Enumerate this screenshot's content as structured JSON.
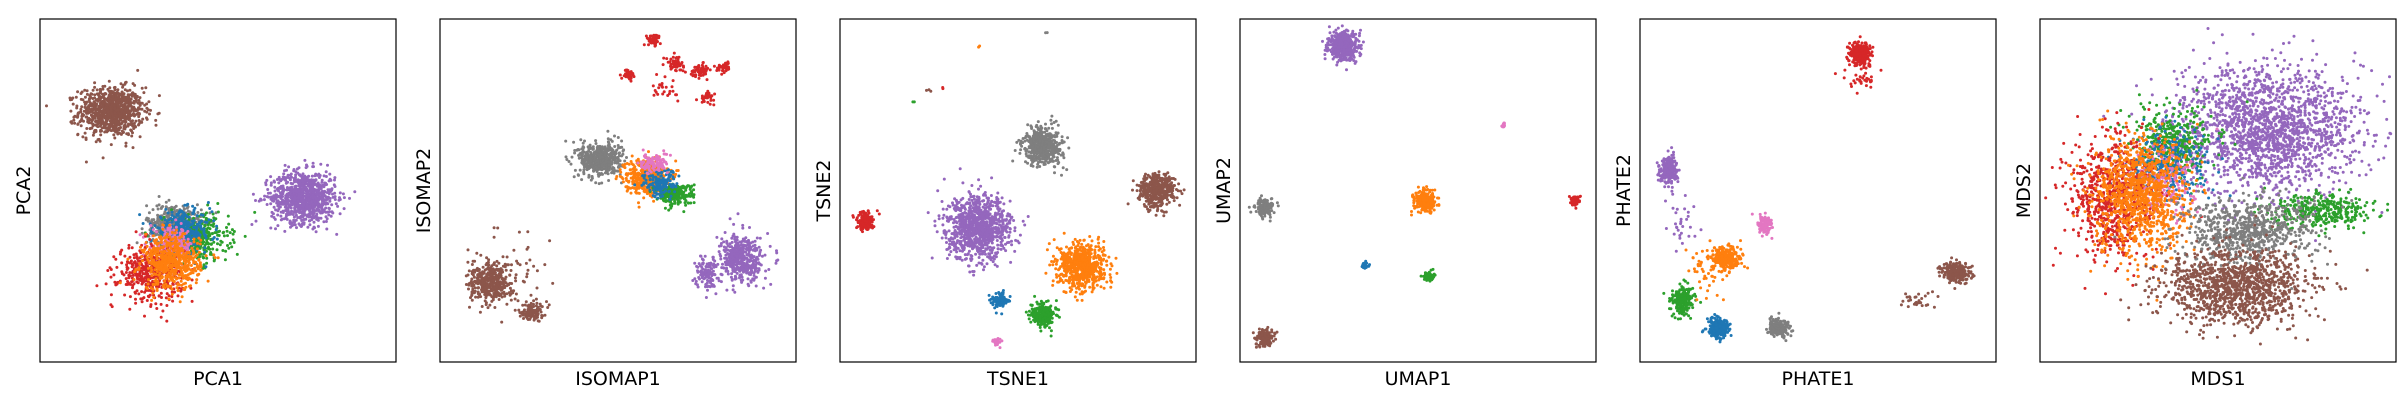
{
  "figure": {
    "colors": [
      "#1f77b4",
      "#ff7f0e",
      "#2ca02c",
      "#d62728",
      "#9467bd",
      "#8c564b",
      "#e377c2",
      "#7f7f7f"
    ]
  },
  "chart_data": [
    {
      "type": "scatter",
      "title": "",
      "xlabel": "PCA1",
      "ylabel": "PCA2",
      "xlim": [
        0,
        100
      ],
      "ylim": [
        0,
        100
      ],
      "grid": false,
      "legend": "none",
      "clusters": [
        {
          "color": "#8c564b",
          "cx": 20,
          "cy": 73,
          "rx": 9,
          "ry": 7,
          "n": 900
        },
        {
          "color": "#9467bd",
          "cx": 74,
          "cy": 48,
          "rx": 9,
          "ry": 7.5,
          "n": 900
        },
        {
          "color": "#7f7f7f",
          "cx": 38,
          "cy": 40,
          "rx": 8,
          "ry": 6,
          "n": 450
        },
        {
          "color": "#2ca02c",
          "cx": 44,
          "cy": 36,
          "rx": 9,
          "ry": 7,
          "n": 350
        },
        {
          "color": "#1f77b4",
          "cx": 40,
          "cy": 38,
          "rx": 8,
          "ry": 6,
          "n": 350
        },
        {
          "color": "#e377c2",
          "cx": 37,
          "cy": 34,
          "rx": 6,
          "ry": 5,
          "n": 200
        },
        {
          "color": "#d62728",
          "cx": 31,
          "cy": 26,
          "rx": 9,
          "ry": 8,
          "n": 450
        },
        {
          "color": "#ff7f0e",
          "cx": 37,
          "cy": 29,
          "rx": 8,
          "ry": 8,
          "n": 550
        }
      ]
    },
    {
      "type": "scatter",
      "title": "",
      "xlabel": "ISOMAP1",
      "ylabel": "ISOMAP2",
      "xlim": [
        0,
        100
      ],
      "ylim": [
        0,
        100
      ],
      "grid": false,
      "legend": "none",
      "clusters": [
        {
          "color": "#d62728",
          "cx": 60,
          "cy": 94,
          "rx": 2,
          "ry": 1.5,
          "n": 60
        },
        {
          "color": "#d62728",
          "cx": 66,
          "cy": 87,
          "rx": 2.5,
          "ry": 2,
          "n": 60
        },
        {
          "color": "#d62728",
          "cx": 73,
          "cy": 85,
          "rx": 2.5,
          "ry": 1.8,
          "n": 60
        },
        {
          "color": "#d62728",
          "cx": 80,
          "cy": 86,
          "rx": 2,
          "ry": 1.5,
          "n": 40
        },
        {
          "color": "#d62728",
          "cx": 53,
          "cy": 84,
          "rx": 2,
          "ry": 1.5,
          "n": 40
        },
        {
          "color": "#d62728",
          "cx": 75,
          "cy": 77,
          "rx": 2,
          "ry": 1.5,
          "n": 30
        },
        {
          "color": "#d62728",
          "cx": 63,
          "cy": 80,
          "rx": 4,
          "ry": 4,
          "n": 25
        },
        {
          "color": "#7f7f7f",
          "cx": 45,
          "cy": 59,
          "rx": 6,
          "ry": 5,
          "n": 500
        },
        {
          "color": "#ff7f0e",
          "cx": 58,
          "cy": 54,
          "rx": 6,
          "ry": 5,
          "n": 450
        },
        {
          "color": "#2ca02c",
          "cx": 66,
          "cy": 49,
          "rx": 5,
          "ry": 3,
          "n": 250
        },
        {
          "color": "#1f77b4",
          "cx": 62,
          "cy": 52,
          "rx": 5,
          "ry": 4,
          "n": 150
        },
        {
          "color": "#e377c2",
          "cx": 60,
          "cy": 58,
          "rx": 4,
          "ry": 3,
          "n": 100
        },
        {
          "color": "#9467bd",
          "cx": 85,
          "cy": 30,
          "rx": 6,
          "ry": 7,
          "n": 450
        },
        {
          "color": "#9467bd",
          "cx": 75,
          "cy": 26,
          "rx": 3,
          "ry": 5,
          "n": 120
        },
        {
          "color": "#8c564b",
          "cx": 14,
          "cy": 23,
          "rx": 6,
          "ry": 5.5,
          "n": 400
        },
        {
          "color": "#8c564b",
          "cx": 26,
          "cy": 15,
          "rx": 3,
          "ry": 3,
          "n": 120
        },
        {
          "color": "#8c564b",
          "cx": 22,
          "cy": 28,
          "rx": 10,
          "ry": 10,
          "n": 40
        }
      ]
    },
    {
      "type": "scatter",
      "title": "",
      "xlabel": "TSNE1",
      "ylabel": "TSNE2",
      "xlim": [
        0,
        100
      ],
      "ylim": [
        0,
        100
      ],
      "grid": false,
      "legend": "none",
      "clusters": [
        {
          "color": "#7f7f7f",
          "cx": 57,
          "cy": 63,
          "rx": 5.5,
          "ry": 5.5,
          "n": 500
        },
        {
          "color": "#8c564b",
          "cx": 89,
          "cy": 50,
          "rx": 5,
          "ry": 5,
          "n": 450
        },
        {
          "color": "#d62728",
          "cx": 7,
          "cy": 41,
          "rx": 2.5,
          "ry": 2.5,
          "n": 150
        },
        {
          "color": "#9467bd",
          "cx": 39,
          "cy": 39,
          "rx": 9,
          "ry": 9,
          "n": 1000
        },
        {
          "color": "#ff7f0e",
          "cx": 68,
          "cy": 28,
          "rx": 6.5,
          "ry": 6.5,
          "n": 700
        },
        {
          "color": "#1f77b4",
          "cx": 45,
          "cy": 18,
          "rx": 2,
          "ry": 2,
          "n": 120
        },
        {
          "color": "#2ca02c",
          "cx": 57,
          "cy": 14,
          "rx": 3.5,
          "ry": 3.5,
          "n": 250
        },
        {
          "color": "#e377c2",
          "cx": 44,
          "cy": 6,
          "rx": 1.2,
          "ry": 1.2,
          "n": 30
        },
        {
          "color": "#ff7f0e",
          "cx": 39,
          "cy": 92,
          "rx": 0.3,
          "ry": 0.3,
          "n": 2
        },
        {
          "color": "#7f7f7f",
          "cx": 58,
          "cy": 96,
          "rx": 0.3,
          "ry": 0.3,
          "n": 2
        },
        {
          "color": "#8c564b",
          "cx": 25,
          "cy": 79,
          "rx": 1,
          "ry": 1,
          "n": 3
        },
        {
          "color": "#d62728",
          "cx": 29,
          "cy": 80,
          "rx": 0.5,
          "ry": 0.5,
          "n": 2
        },
        {
          "color": "#2ca02c",
          "cx": 21,
          "cy": 76,
          "rx": 0.5,
          "ry": 0.5,
          "n": 2
        }
      ]
    },
    {
      "type": "scatter",
      "title": "",
      "xlabel": "UMAP1",
      "ylabel": "UMAP2",
      "xlim": [
        0,
        100
      ],
      "ylim": [
        0,
        100
      ],
      "grid": false,
      "legend": "none",
      "clusters": [
        {
          "color": "#9467bd",
          "cx": 29,
          "cy": 92,
          "rx": 4,
          "ry": 4,
          "n": 500
        },
        {
          "color": "#e377c2",
          "cx": 74,
          "cy": 69,
          "rx": 0.8,
          "ry": 0.8,
          "n": 20
        },
        {
          "color": "#7f7f7f",
          "cx": 7,
          "cy": 45,
          "rx": 2.5,
          "ry": 2.5,
          "n": 150
        },
        {
          "color": "#ff7f0e",
          "cx": 52,
          "cy": 47,
          "rx": 3,
          "ry": 3,
          "n": 250
        },
        {
          "color": "#d62728",
          "cx": 94,
          "cy": 47,
          "rx": 1.5,
          "ry": 1.5,
          "n": 60
        },
        {
          "color": "#1f77b4",
          "cx": 35,
          "cy": 28,
          "rx": 1,
          "ry": 1,
          "n": 30
        },
        {
          "color": "#2ca02c",
          "cx": 53,
          "cy": 25,
          "rx": 1.5,
          "ry": 1.5,
          "n": 60
        },
        {
          "color": "#8c564b",
          "cx": 7,
          "cy": 7,
          "rx": 2.5,
          "ry": 2.5,
          "n": 150
        }
      ]
    },
    {
      "type": "scatter",
      "title": "",
      "xlabel": "PHATE1",
      "ylabel": "PHATE2",
      "xlim": [
        0,
        100
      ],
      "ylim": [
        0,
        100
      ],
      "grid": false,
      "legend": "none",
      "clusters": [
        {
          "color": "#d62728",
          "cx": 62,
          "cy": 90,
          "rx": 3,
          "ry": 3.5,
          "n": 250
        },
        {
          "color": "#d62728",
          "cx": 64,
          "cy": 82,
          "rx": 5,
          "ry": 3,
          "n": 30
        },
        {
          "color": "#9467bd",
          "cx": 8,
          "cy": 56,
          "rx": 2.5,
          "ry": 4,
          "n": 250
        },
        {
          "color": "#e377c2",
          "cx": 35,
          "cy": 40,
          "rx": 2,
          "ry": 3,
          "n": 120
        },
        {
          "color": "#ff7f0e",
          "cx": 24,
          "cy": 30,
          "rx": 4,
          "ry": 3.5,
          "n": 300
        },
        {
          "color": "#8c564b",
          "cx": 89,
          "cy": 26,
          "rx": 4,
          "ry": 3,
          "n": 250
        },
        {
          "color": "#8c564b",
          "cx": 78,
          "cy": 18,
          "rx": 5,
          "ry": 3,
          "n": 30
        },
        {
          "color": "#2ca02c",
          "cx": 12,
          "cy": 18,
          "rx": 3,
          "ry": 4,
          "n": 250
        },
        {
          "color": "#1f77b4",
          "cx": 22,
          "cy": 10,
          "rx": 3,
          "ry": 3,
          "n": 250
        },
        {
          "color": "#7f7f7f",
          "cx": 39,
          "cy": 10,
          "rx": 3,
          "ry": 2.5,
          "n": 200
        },
        {
          "color": "#ff7f0e",
          "cx": 18,
          "cy": 26,
          "rx": 5,
          "ry": 8,
          "n": 40
        },
        {
          "color": "#9467bd",
          "cx": 12,
          "cy": 40,
          "rx": 4,
          "ry": 8,
          "n": 30
        }
      ]
    },
    {
      "type": "scatter",
      "title": "",
      "xlabel": "MDS1",
      "ylabel": "MDS2",
      "xlim": [
        0,
        100
      ],
      "ylim": [
        0,
        100
      ],
      "grid": false,
      "legend": "none",
      "clusters": [
        {
          "color": "#9467bd",
          "cx": 64,
          "cy": 68,
          "rx": 26,
          "ry": 18,
          "n": 1800
        },
        {
          "color": "#2ca02c",
          "cx": 38,
          "cy": 64,
          "rx": 12,
          "ry": 10,
          "n": 350
        },
        {
          "color": "#2ca02c",
          "cx": 78,
          "cy": 44,
          "rx": 14,
          "ry": 5,
          "n": 350
        },
        {
          "color": "#1f77b4",
          "cx": 36,
          "cy": 58,
          "rx": 12,
          "ry": 10,
          "n": 300
        },
        {
          "color": "#e377c2",
          "cx": 34,
          "cy": 52,
          "rx": 10,
          "ry": 10,
          "n": 200
        },
        {
          "color": "#d62728",
          "cx": 20,
          "cy": 48,
          "rx": 12,
          "ry": 18,
          "n": 700
        },
        {
          "color": "#ff7f0e",
          "cx": 28,
          "cy": 48,
          "rx": 13,
          "ry": 17,
          "n": 1000
        },
        {
          "color": "#7f7f7f",
          "cx": 58,
          "cy": 38,
          "rx": 18,
          "ry": 10,
          "n": 700
        },
        {
          "color": "#8c564b",
          "cx": 55,
          "cy": 22,
          "rx": 20,
          "ry": 11,
          "n": 1200
        }
      ]
    }
  ]
}
